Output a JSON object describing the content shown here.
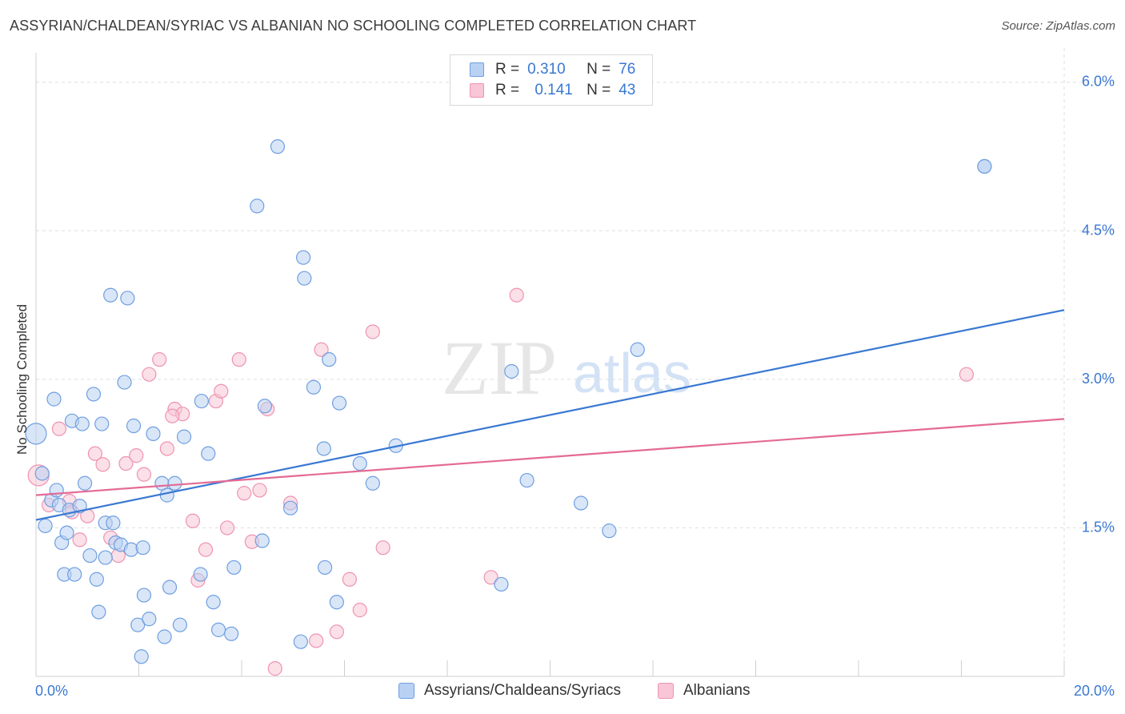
{
  "title": "ASSYRIAN/CHALDEAN/SYRIAC VS ALBANIAN NO SCHOOLING COMPLETED CORRELATION CHART",
  "source": "Source: ZipAtlas.com",
  "watermark": {
    "zip": "ZIP",
    "atlas": "atlas"
  },
  "colors": {
    "blue": "#3a78d2",
    "blue_fill": "#b9d1f3",
    "blue_stroke": "#6f9fe0",
    "pink": "#e46a94",
    "pink_fill": "#f8c6d6",
    "pink_stroke": "#ee93b2",
    "grid": "#dedede",
    "axis_text": "#3a78d2"
  },
  "legend_top": {
    "rows": [
      {
        "r_label": "R =",
        "r_value": "0.310",
        "n_label": "N =",
        "n_value": "76"
      },
      {
        "r_label": "R =",
        "r_value": "0.141",
        "n_label": "N =",
        "n_value": "43"
      }
    ]
  },
  "chart_data": {
    "type": "scatter",
    "title": "ASSYRIAN/CHALDEAN/SYRIAC VS ALBANIAN NO SCHOOLING COMPLETED CORRELATION CHART",
    "xlabel": "",
    "ylabel": "No Schooling Completed",
    "xlim": [
      0,
      20
    ],
    "ylim": [
      0,
      6.2
    ],
    "x_tick_labels": [
      "0.0%",
      "20.0%"
    ],
    "y_ticks": [
      1.5,
      3.0,
      4.5,
      6.0
    ],
    "y_tick_labels": [
      "1.5%",
      "3.0%",
      "4.5%",
      "6.0%"
    ],
    "grid": true,
    "legend_position": "bottom",
    "series": [
      {
        "name": "Assyrians/Chaldeans/Syriacs",
        "R": 0.31,
        "N": 76,
        "trend": {
          "x": [
            0,
            20
          ],
          "y": [
            1.58,
            3.7
          ]
        },
        "points": [
          [
            0.0,
            2.45
          ],
          [
            0.12,
            2.05
          ],
          [
            0.18,
            1.52
          ],
          [
            0.3,
            1.78
          ],
          [
            0.35,
            2.8
          ],
          [
            0.4,
            1.88
          ],
          [
            0.45,
            1.73
          ],
          [
            0.5,
            1.35
          ],
          [
            0.55,
            1.03
          ],
          [
            0.6,
            1.45
          ],
          [
            0.65,
            1.68
          ],
          [
            0.7,
            2.58
          ],
          [
            0.75,
            1.03
          ],
          [
            0.85,
            1.72
          ],
          [
            0.9,
            2.55
          ],
          [
            0.95,
            1.95
          ],
          [
            1.05,
            1.22
          ],
          [
            1.12,
            2.85
          ],
          [
            1.18,
            0.98
          ],
          [
            1.22,
            0.65
          ],
          [
            1.28,
            2.55
          ],
          [
            1.35,
            1.55
          ],
          [
            1.35,
            1.2
          ],
          [
            1.45,
            3.85
          ],
          [
            1.5,
            1.55
          ],
          [
            1.55,
            1.35
          ],
          [
            1.65,
            1.33
          ],
          [
            1.72,
            2.97
          ],
          [
            1.78,
            3.82
          ],
          [
            1.85,
            1.28
          ],
          [
            1.9,
            2.53
          ],
          [
            1.98,
            0.52
          ],
          [
            2.05,
            0.2
          ],
          [
            2.08,
            1.3
          ],
          [
            2.1,
            0.82
          ],
          [
            2.2,
            0.58
          ],
          [
            2.28,
            2.45
          ],
          [
            2.45,
            1.95
          ],
          [
            2.5,
            0.4
          ],
          [
            2.55,
            1.83
          ],
          [
            2.6,
            0.9
          ],
          [
            2.7,
            1.95
          ],
          [
            2.8,
            0.52
          ],
          [
            2.88,
            2.42
          ],
          [
            3.2,
            1.03
          ],
          [
            3.22,
            2.78
          ],
          [
            3.35,
            2.25
          ],
          [
            3.45,
            0.75
          ],
          [
            3.55,
            0.47
          ],
          [
            3.8,
            0.43
          ],
          [
            3.85,
            1.1
          ],
          [
            4.3,
            4.75
          ],
          [
            4.4,
            1.37
          ],
          [
            4.45,
            2.73
          ],
          [
            4.7,
            5.35
          ],
          [
            4.95,
            1.7
          ],
          [
            5.15,
            0.35
          ],
          [
            5.2,
            4.23
          ],
          [
            5.22,
            4.02
          ],
          [
            5.4,
            2.92
          ],
          [
            5.6,
            2.3
          ],
          [
            5.62,
            1.1
          ],
          [
            5.7,
            3.2
          ],
          [
            5.85,
            0.75
          ],
          [
            5.9,
            2.76
          ],
          [
            6.3,
            2.15
          ],
          [
            6.55,
            1.95
          ],
          [
            7.0,
            2.33
          ],
          [
            9.25,
            3.08
          ],
          [
            9.05,
            0.93
          ],
          [
            9.55,
            1.98
          ],
          [
            10.6,
            1.75
          ],
          [
            11.15,
            1.47
          ],
          [
            11.7,
            3.3
          ],
          [
            18.45,
            5.15
          ],
          [
            18.45,
            5.15
          ]
        ]
      },
      {
        "name": "Albanians",
        "R": 0.141,
        "N": 43,
        "trend": {
          "x": [
            0,
            20
          ],
          "y": [
            1.83,
            2.6
          ]
        },
        "points": [
          [
            0.05,
            2.03
          ],
          [
            0.25,
            1.73
          ],
          [
            0.45,
            2.5
          ],
          [
            0.65,
            1.77
          ],
          [
            0.7,
            1.66
          ],
          [
            0.85,
            1.38
          ],
          [
            1.0,
            1.62
          ],
          [
            1.15,
            2.25
          ],
          [
            1.3,
            2.14
          ],
          [
            1.45,
            1.4
          ],
          [
            1.6,
            1.22
          ],
          [
            1.75,
            2.15
          ],
          [
            1.95,
            2.23
          ],
          [
            2.1,
            2.04
          ],
          [
            2.2,
            3.05
          ],
          [
            2.4,
            3.2
          ],
          [
            2.55,
            2.3
          ],
          [
            2.7,
            2.7
          ],
          [
            2.85,
            2.65
          ],
          [
            3.05,
            1.57
          ],
          [
            3.15,
            0.97
          ],
          [
            3.3,
            1.28
          ],
          [
            3.5,
            2.78
          ],
          [
            3.6,
            2.88
          ],
          [
            3.72,
            1.5
          ],
          [
            3.95,
            3.2
          ],
          [
            4.05,
            1.85
          ],
          [
            4.2,
            1.36
          ],
          [
            4.35,
            1.88
          ],
          [
            4.5,
            2.7
          ],
          [
            4.65,
            0.08
          ],
          [
            4.95,
            1.75
          ],
          [
            5.45,
            0.36
          ],
          [
            5.55,
            3.3
          ],
          [
            5.85,
            0.45
          ],
          [
            6.1,
            0.98
          ],
          [
            6.3,
            0.67
          ],
          [
            6.55,
            3.48
          ],
          [
            6.75,
            1.3
          ],
          [
            8.85,
            1.0
          ],
          [
            9.35,
            3.85
          ],
          [
            18.1,
            3.05
          ],
          [
            2.65,
            2.63
          ]
        ]
      }
    ]
  },
  "bottom_legend": [
    "Assyrians/Chaldeans/Syriacs",
    "Albanians"
  ]
}
